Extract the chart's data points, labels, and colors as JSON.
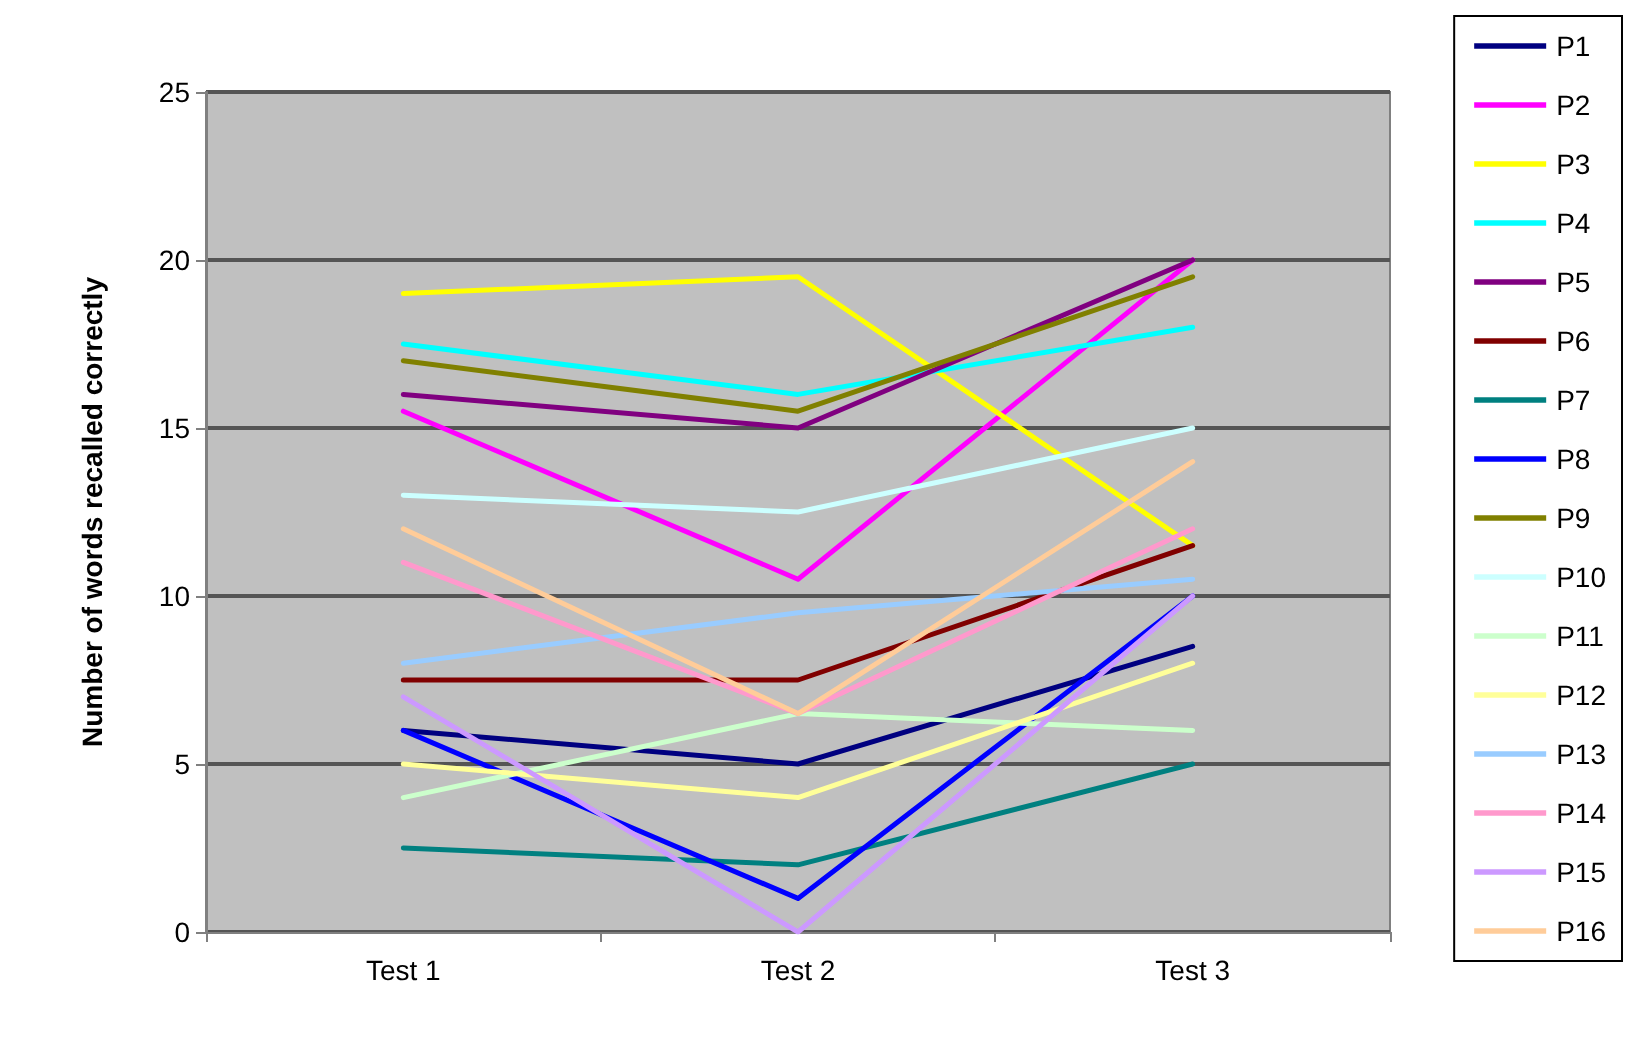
{
  "chart_data": {
    "type": "line",
    "ylabel": "Number of words recalled correctly",
    "categories": [
      "Test 1",
      "Test 2",
      "Test 3"
    ],
    "ylim": [
      0,
      25
    ],
    "yticks": [
      0,
      5,
      10,
      15,
      20,
      25
    ],
    "grid": "y",
    "legend": "right",
    "marker": "none",
    "line_style": "solid",
    "series": [
      {
        "name": "P1",
        "color": "#000080",
        "values": [
          6,
          5,
          8.5
        ]
      },
      {
        "name": "P2",
        "color": "#ff00ff",
        "values": [
          15.5,
          10.5,
          20
        ]
      },
      {
        "name": "P3",
        "color": "#ffff00",
        "values": [
          19,
          19.5,
          11.5
        ]
      },
      {
        "name": "P4",
        "color": "#00ffff",
        "values": [
          17.5,
          16,
          18
        ]
      },
      {
        "name": "P5",
        "color": "#800080",
        "values": [
          16,
          15,
          20
        ]
      },
      {
        "name": "P6",
        "color": "#800000",
        "values": [
          7.5,
          7.5,
          11.5
        ]
      },
      {
        "name": "P7",
        "color": "#008080",
        "values": [
          2.5,
          2,
          5
        ]
      },
      {
        "name": "P8",
        "color": "#0000ff",
        "values": [
          6,
          1,
          10
        ]
      },
      {
        "name": "P9",
        "color": "#808000",
        "values": [
          17,
          15.5,
          19.5
        ]
      },
      {
        "name": "P10",
        "color": "#ccffff",
        "values": [
          13,
          12.5,
          15
        ]
      },
      {
        "name": "P11",
        "color": "#ccffcc",
        "values": [
          4,
          6.5,
          6
        ]
      },
      {
        "name": "P12",
        "color": "#ffff99",
        "values": [
          5,
          4,
          8
        ]
      },
      {
        "name": "P13",
        "color": "#99ccff",
        "values": [
          8,
          9.5,
          10.5
        ]
      },
      {
        "name": "P14",
        "color": "#ff99cc",
        "values": [
          11,
          6.5,
          12
        ]
      },
      {
        "name": "P15",
        "color": "#cc99ff",
        "values": [
          7,
          0,
          10
        ]
      },
      {
        "name": "P16",
        "color": "#ffcc99",
        "values": [
          12,
          6.5,
          14
        ]
      }
    ]
  }
}
